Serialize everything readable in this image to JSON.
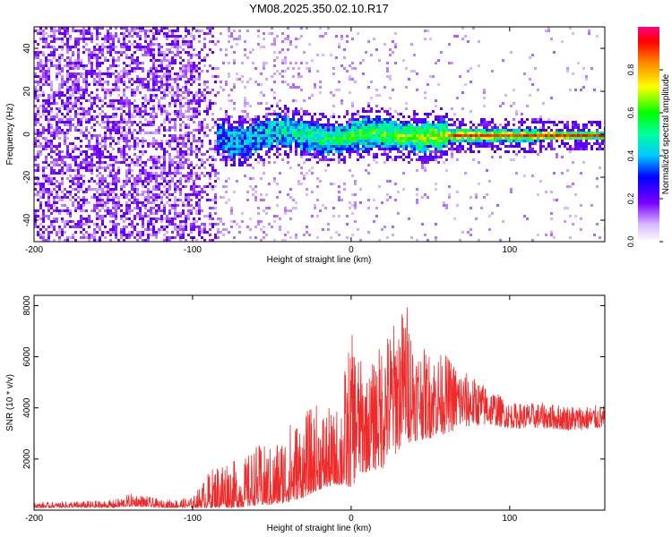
{
  "figure_title": "YM08.2025.350.02.10.R17",
  "colors": {
    "snr_line": "#ee2a2a",
    "axis": "#000000",
    "background": "#ffffff"
  },
  "chart_data": [
    {
      "type": "heatmap",
      "title": "YM08.2025.350.02.10.R17",
      "xlabel": "Height of straight line (km)",
      "ylabel": "Frequency (Hz)",
      "xlim": [
        -200,
        160
      ],
      "ylim": [
        -50,
        50
      ],
      "xticks": [
        -200,
        -100,
        0,
        100
      ],
      "xtick_labels": [
        "-200",
        "-100",
        "0",
        "100"
      ],
      "yticks": [
        -40,
        -20,
        0,
        20,
        40
      ],
      "ytick_labels": [
        "-40",
        "-20",
        "0",
        "20",
        "40"
      ],
      "description_regions": [
        {
          "x_range": [
            -200,
            -85
          ],
          "freq_range": [
            -50,
            50
          ],
          "amplitude": "low (0.1-0.2), broadband noise"
        },
        {
          "x_range": [
            -85,
            160
          ],
          "freq_range": [
            -10,
            10
          ],
          "amplitude": "signal band narrowing toward 0 Hz, peak ~0.9 near 0 Hz beyond 60 km"
        }
      ],
      "colorbar": {
        "label": "Normalized spectral amplitude",
        "range": [
          0.0,
          1.0
        ],
        "ticks": [
          0.0,
          0.2,
          0.4,
          0.6,
          0.8
        ],
        "tick_labels": [
          "0.0",
          "0.2",
          "0.4",
          "0.6",
          "0.8"
        ]
      }
    },
    {
      "type": "line",
      "xlabel": "Height of straight line (km)",
      "ylabel": "SNR (10 * v/v)",
      "xlim": [
        -200,
        160
      ],
      "ylim": [
        0,
        8400
      ],
      "xticks": [
        -200,
        -100,
        0,
        100
      ],
      "xtick_labels": [
        "-200",
        "-100",
        "0",
        "100"
      ],
      "yticks": [
        2000,
        4000,
        6000,
        8000
      ],
      "ytick_labels": [
        "2000",
        "4000",
        "6000",
        "8000"
      ],
      "envelope": {
        "x": [
          -200,
          -150,
          -137,
          -120,
          -100,
          -90,
          -80,
          -70,
          -60,
          -50,
          -40,
          -30,
          -20,
          -10,
          0,
          10,
          20,
          30,
          35,
          40,
          50,
          60,
          70,
          80,
          90,
          100,
          120,
          140,
          160
        ],
        "upper": [
          300,
          400,
          700,
          400,
          500,
          1500,
          2200,
          1800,
          2600,
          2500,
          3500,
          3800,
          4300,
          3800,
          7000,
          5200,
          6800,
          7600,
          8300,
          6500,
          6200,
          6100,
          5500,
          5100,
          4700,
          4200,
          4200,
          4100,
          4100
        ],
        "lower": [
          100,
          100,
          150,
          100,
          100,
          100,
          100,
          100,
          200,
          200,
          300,
          500,
          800,
          1000,
          900,
          1500,
          1600,
          2300,
          2600,
          2700,
          2800,
          3000,
          3200,
          3300,
          3300,
          3200,
          3200,
          3100,
          3200
        ]
      }
    }
  ]
}
